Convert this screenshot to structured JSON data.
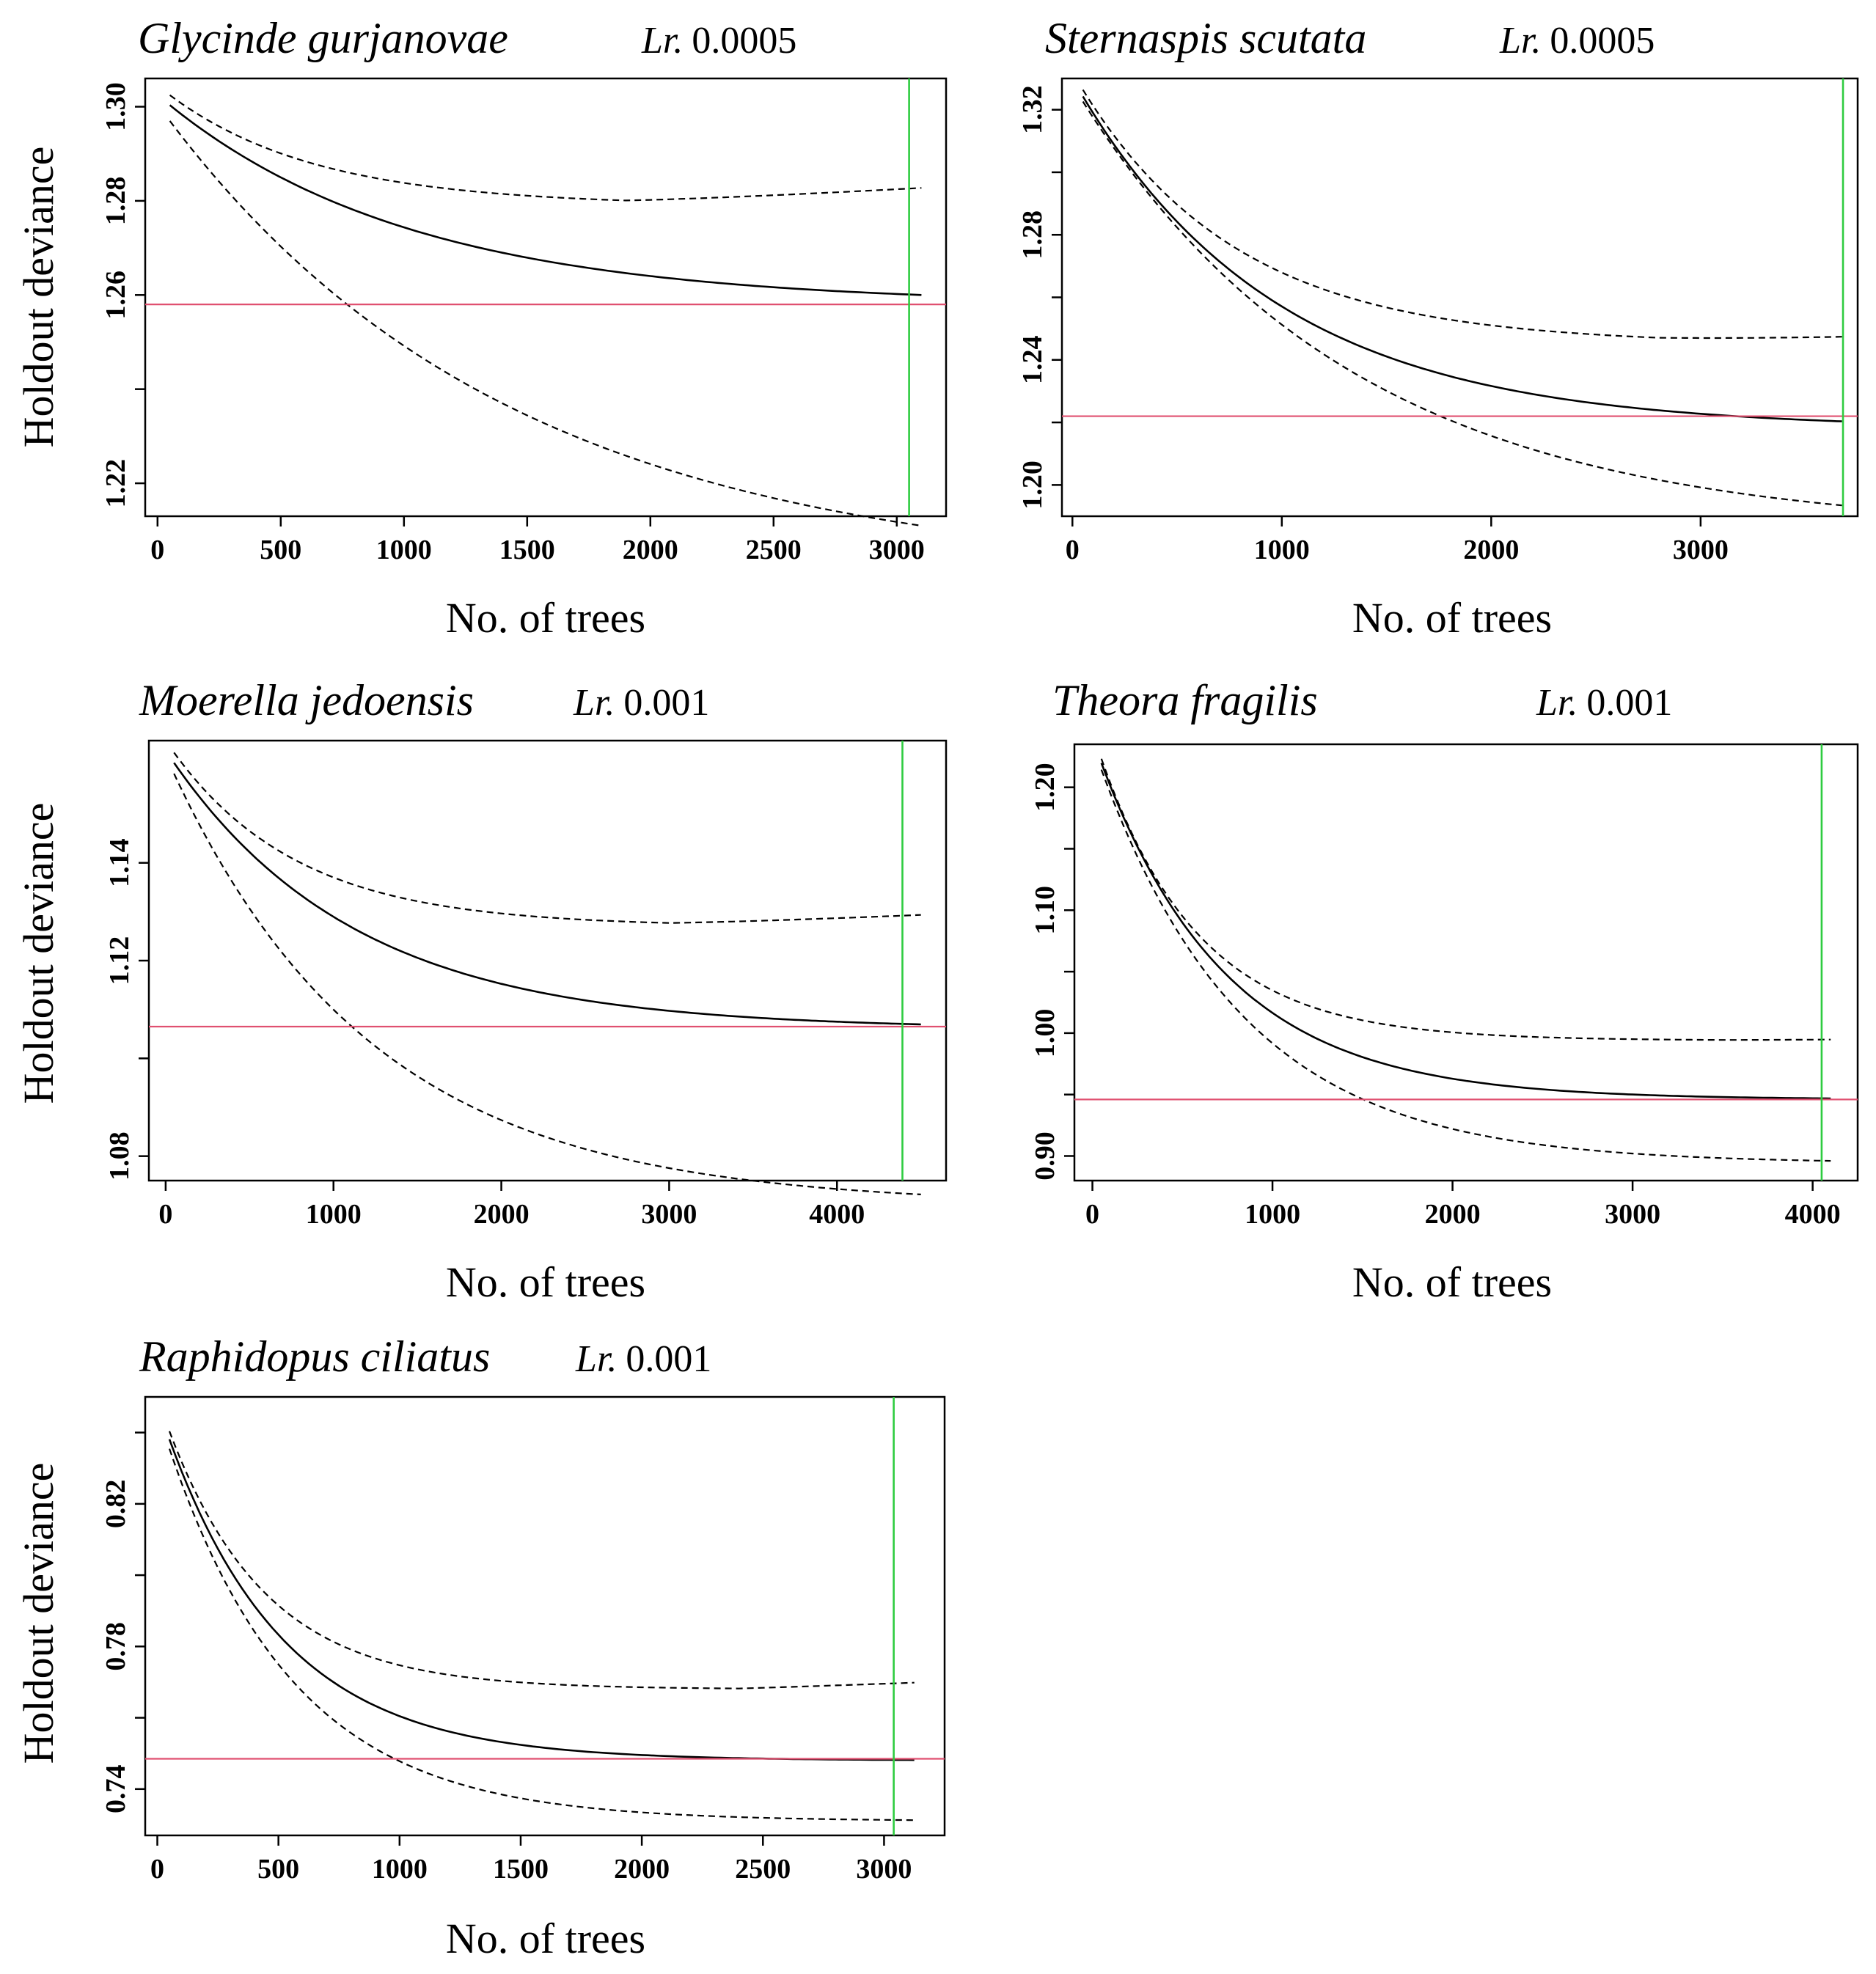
{
  "chart_data": [
    {
      "type": "line",
      "title": "Glycinde gurjanovae",
      "lr_label": "Lr.",
      "lr_value": "0.0005",
      "xlabel": "No. of trees",
      "ylabel": "Holdout deviance",
      "xlim": [
        -50,
        3200
      ],
      "ylim": [
        1.213,
        1.306
      ],
      "x_ticks": [
        0,
        500,
        1000,
        1500,
        2000,
        2500,
        3000
      ],
      "x_tick_labels": [
        "0",
        "500",
        "1000",
        "1500",
        "2000",
        "2500",
        "3000"
      ],
      "y_ticks": [
        1.22,
        1.26,
        1.28,
        1.3
      ],
      "y_tick_labels": [
        "1.22",
        "1.26",
        "1.28",
        "1.30"
      ],
      "y_ticks_minor": [
        1.24
      ],
      "x_end": 3100,
      "mean": {
        "y0": 1.3025,
        "yf": 1.258,
        "k": 1000
      },
      "upper": {
        "y0": 1.3045,
        "yf": 1.279,
        "k": 600,
        "rise": 3e-06,
        "rise_from": 1900
      },
      "lower": {
        "y0": 1.3005,
        "yf": 1.2,
        "k": 1400
      },
      "min_deviance": 1.258,
      "optimal_trees": 3050,
      "colors": {
        "mean": "#000000",
        "cv_bounds": "#000000",
        "min_line": "#e05070",
        "optimal_line": "#2ecc40"
      }
    },
    {
      "type": "line",
      "title": "Sternaspis scutata",
      "lr_label": "Lr.",
      "lr_value": "0.0005",
      "xlabel": "No. of trees",
      "ylabel": "Holdout deviance",
      "xlim": [
        -50,
        3750
      ],
      "ylim": [
        1.19,
        1.33
      ],
      "x_ticks": [
        0,
        1000,
        2000,
        3000
      ],
      "x_tick_labels": [
        "0",
        "1000",
        "2000",
        "3000"
      ],
      "y_ticks": [
        1.2,
        1.24,
        1.28,
        1.32
      ],
      "y_tick_labels": [
        "1.20",
        "1.24",
        "1.28",
        "1.32"
      ],
      "y_ticks_minor": [
        1.22,
        1.26,
        1.3
      ],
      "x_end": 3680,
      "mean": {
        "y0": 1.33,
        "yf": 1.218,
        "k": 950
      },
      "upper": {
        "y0": 1.332,
        "yf": 1.245,
        "k": 750,
        "rise": 2e-06,
        "rise_from": 2800
      },
      "lower": {
        "y0": 1.328,
        "yf": 1.185,
        "k": 1300
      },
      "min_deviance": 1.222,
      "optimal_trees": 3680,
      "colors": {
        "mean": "#000000",
        "cv_bounds": "#000000",
        "min_line": "#e05070",
        "optimal_line": "#2ecc40"
      }
    },
    {
      "type": "line",
      "title": "Moerella jedoensis",
      "lr_label": "Lr.",
      "lr_value": "0.001",
      "xlabel": "No. of trees",
      "ylabel": "Holdout deviance",
      "xlim": [
        -100,
        4650
      ],
      "ylim": [
        1.075,
        1.165
      ],
      "x_ticks": [
        0,
        1000,
        2000,
        3000,
        4000
      ],
      "x_tick_labels": [
        "0",
        "1000",
        "2000",
        "3000",
        "4000"
      ],
      "y_ticks": [
        1.08,
        1.12,
        1.14
      ],
      "y_tick_labels": [
        "1.08",
        "1.12",
        "1.14"
      ],
      "y_ticks_minor": [
        1.1
      ],
      "x_end": 4500,
      "mean": {
        "y0": 1.163,
        "yf": 1.106,
        "k": 1100
      },
      "upper": {
        "y0": 1.165,
        "yf": 1.127,
        "k": 750,
        "rise": 1.5e-06,
        "rise_from": 3000
      },
      "lower": {
        "y0": 1.162,
        "yf": 1.07,
        "k": 1200
      },
      "min_deviance": 1.1065,
      "optimal_trees": 4390,
      "colors": {
        "mean": "#000000",
        "cv_bounds": "#000000",
        "min_line": "#e05070",
        "optimal_line": "#2ecc40"
      }
    },
    {
      "type": "line",
      "title": "Theora fragilis",
      "lr_label": "Lr.",
      "lr_value": "0.001",
      "xlabel": "No. of trees",
      "ylabel": "Holdout deviance",
      "xlim": [
        -100,
        4250
      ],
      "ylim": [
        0.88,
        1.235
      ],
      "x_ticks": [
        0,
        1000,
        2000,
        3000,
        4000
      ],
      "x_tick_labels": [
        "0",
        "1000",
        "2000",
        "3000",
        "4000"
      ],
      "y_ticks": [
        0.9,
        1.0,
        1.1,
        1.2
      ],
      "y_tick_labels": [
        "0.90",
        "1.00",
        "1.10",
        "1.20"
      ],
      "y_ticks_minor": [
        0.95,
        1.05,
        1.15
      ],
      "x_end": 4100,
      "mean": {
        "y0": 1.24,
        "yf": 0.946,
        "k": 700
      },
      "upper": {
        "y0": 1.245,
        "yf": 0.994,
        "k": 550,
        "rise": 1e-06,
        "rise_from": 3500
      },
      "lower": {
        "y0": 1.235,
        "yf": 0.894,
        "k": 800
      },
      "min_deviance": 0.946,
      "optimal_trees": 4050,
      "colors": {
        "mean": "#000000",
        "cv_bounds": "#000000",
        "min_line": "#e05070",
        "optimal_line": "#2ecc40"
      }
    },
    {
      "type": "line",
      "title": "Raphidopus ciliatus",
      "lr_label": "Lr.",
      "lr_value": "0.001",
      "xlabel": "No. of trees",
      "ylabel": "Holdout deviance",
      "xlim": [
        -50,
        3250
      ],
      "ylim": [
        0.727,
        0.85
      ],
      "x_ticks": [
        0,
        500,
        1000,
        1500,
        2000,
        2500,
        3000
      ],
      "x_tick_labels": [
        "0",
        "500",
        "1000",
        "1500",
        "2000",
        "2500",
        "3000"
      ],
      "y_ticks": [
        0.74,
        0.78,
        0.82
      ],
      "y_tick_labels": [
        "0.74",
        "0.78",
        "0.82"
      ],
      "y_ticks_minor": [
        0.76,
        0.8,
        0.84
      ],
      "x_end": 3130,
      "mean": {
        "y0": 0.848,
        "yf": 0.748,
        "k": 480
      },
      "upper": {
        "y0": 0.85,
        "yf": 0.768,
        "k": 400,
        "rise": 2.5e-06,
        "rise_from": 2400
      },
      "lower": {
        "y0": 0.846,
        "yf": 0.731,
        "k": 520
      },
      "min_deviance": 0.7485,
      "optimal_trees": 3040,
      "colors": {
        "mean": "#000000",
        "cv_bounds": "#000000",
        "min_line": "#e05070",
        "optimal_line": "#2ecc40"
      }
    }
  ]
}
